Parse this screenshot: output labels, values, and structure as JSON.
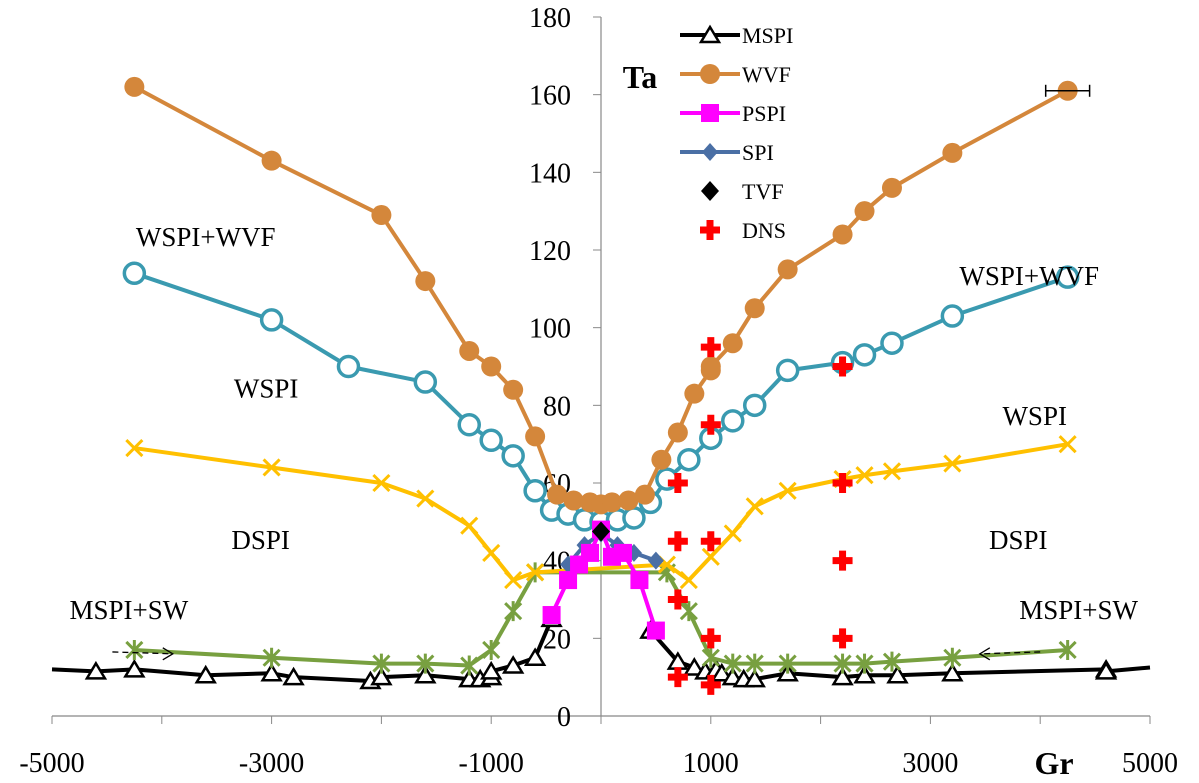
{
  "chart_data": {
    "type": "line",
    "x_axis": {
      "label": "Gr",
      "range": [
        -5000,
        5000
      ],
      "tick_labels": [
        "-5000",
        "-3000",
        "-1000",
        "1000",
        "3000",
        "5000"
      ],
      "tick_values": [
        -5000,
        -3000,
        -1000,
        1000,
        3000,
        5000
      ],
      "minor_tick_step": 1000
    },
    "y_axis": {
      "label": "Ta",
      "range": [
        0,
        180
      ],
      "tick_values": [
        0,
        20,
        40,
        60,
        80,
        100,
        120,
        140,
        160,
        180
      ],
      "tick_labels": [
        "0",
        "20",
        "40",
        "60",
        "80",
        "100",
        "120",
        "140",
        "160",
        "180"
      ]
    },
    "grid": false,
    "legend_position": "top-center",
    "colors": {
      "MSPI": "#000000",
      "WVF": "#d4873b",
      "PSPI": "#ff00ff",
      "SPI": "#4a6fa5",
      "TVF": "#000000",
      "DNS": "#ff0000",
      "WSPI_boundary": "#3a9ab0",
      "DSPI_boundary": "#ffc000",
      "MSPI_SW_boundary": "#78a040"
    },
    "series": [
      {
        "name": "MSPI",
        "marker": "triangle-open",
        "points": [
          [
            -4600,
            11.5
          ],
          [
            -4250,
            12
          ],
          [
            -3600,
            10.5
          ],
          [
            -3000,
            11
          ],
          [
            -2800,
            10
          ],
          [
            -2100,
            9
          ],
          [
            -2000,
            10
          ],
          [
            -1600,
            10.5
          ],
          [
            -1200,
            9.5
          ],
          [
            -1100,
            9.5
          ],
          [
            -1000,
            10
          ],
          [
            -1000,
            11.5
          ],
          [
            -800,
            13
          ],
          [
            -600,
            15
          ],
          [
            -450,
            25
          ]
        ]
      },
      {
        "name": "MSPI_right",
        "marker": "triangle-open",
        "points": [
          [
            450,
            22
          ],
          [
            700,
            14
          ],
          [
            850,
            12.5
          ],
          [
            950,
            11.5
          ],
          [
            1050,
            12
          ],
          [
            1100,
            11
          ],
          [
            1200,
            10
          ],
          [
            1300,
            9.5
          ],
          [
            1400,
            9.5
          ],
          [
            1700,
            11
          ],
          [
            2200,
            10
          ],
          [
            2400,
            10.5
          ],
          [
            2700,
            10.5
          ],
          [
            3200,
            11
          ],
          [
            4600,
            12
          ],
          [
            4600,
            11.5
          ]
        ]
      },
      {
        "name": "WVF",
        "marker": "circle-filled",
        "points": [
          [
            -4250,
            162
          ],
          [
            -3000,
            143
          ],
          [
            -2000,
            129
          ],
          [
            -1600,
            112
          ],
          [
            -1200,
            94
          ],
          [
            -1000,
            90
          ],
          [
            -800,
            84
          ],
          [
            -600,
            72
          ],
          [
            -400,
            57
          ],
          [
            -250,
            55.5
          ],
          [
            -100,
            55
          ],
          [
            0,
            54.5
          ],
          [
            100,
            55
          ],
          [
            250,
            55.5
          ],
          [
            400,
            57
          ],
          [
            550,
            66
          ],
          [
            700,
            73
          ],
          [
            850,
            83
          ],
          [
            1000,
            89
          ],
          [
            1000,
            90
          ],
          [
            1200,
            96
          ],
          [
            1400,
            105
          ],
          [
            1700,
            115
          ],
          [
            2200,
            124
          ],
          [
            2400,
            130
          ],
          [
            2650,
            136
          ],
          [
            3200,
            145
          ],
          [
            4250,
            161
          ]
        ]
      },
      {
        "name": "PSPI",
        "marker": "square-filled",
        "points": [
          [
            -450,
            26
          ],
          [
            -300,
            35
          ],
          [
            -200,
            39
          ],
          [
            -100,
            42
          ],
          [
            0,
            48
          ],
          [
            100,
            41
          ],
          [
            200,
            42
          ],
          [
            350,
            35
          ],
          [
            500,
            22
          ]
        ]
      },
      {
        "name": "SPI",
        "marker": "diamond-filled",
        "points": [
          [
            -300,
            39
          ],
          [
            -150,
            44
          ],
          [
            0,
            47
          ],
          [
            150,
            44
          ],
          [
            300,
            42
          ],
          [
            500,
            40
          ]
        ]
      },
      {
        "name": "TVF",
        "marker": "diamond-black",
        "points": [
          [
            0,
            47.5
          ]
        ]
      },
      {
        "name": "DNS",
        "marker": "cross-filled",
        "points": [
          [
            700,
            60
          ],
          [
            700,
            45
          ],
          [
            700,
            30
          ],
          [
            700,
            10
          ],
          [
            1000,
            95
          ],
          [
            1000,
            75
          ],
          [
            1000,
            45
          ],
          [
            1000,
            20
          ],
          [
            1000,
            8
          ],
          [
            2200,
            90
          ],
          [
            2200,
            60
          ],
          [
            2200,
            40
          ],
          [
            2200,
            20
          ]
        ]
      },
      {
        "name": "WSPI_boundary",
        "marker": "circle-open",
        "points": [
          [
            -4250,
            114
          ],
          [
            -3000,
            102
          ],
          [
            -2300,
            90
          ],
          [
            -1600,
            86
          ],
          [
            -1200,
            75
          ],
          [
            -1000,
            71
          ],
          [
            -800,
            67
          ],
          [
            -600,
            58
          ],
          [
            -450,
            53
          ],
          [
            -300,
            52
          ],
          [
            -150,
            50.5
          ],
          [
            0,
            50
          ],
          [
            150,
            50.5
          ],
          [
            300,
            51
          ],
          [
            450,
            55
          ],
          [
            600,
            61
          ],
          [
            800,
            66
          ],
          [
            1000,
            71.5
          ],
          [
            1200,
            76
          ],
          [
            1400,
            80
          ],
          [
            1700,
            89
          ],
          [
            2200,
            91
          ],
          [
            2400,
            93
          ],
          [
            2650,
            96
          ],
          [
            3200,
            103
          ],
          [
            4250,
            113
          ]
        ]
      },
      {
        "name": "DSPI_boundary",
        "marker": "x",
        "points": [
          [
            -4250,
            69
          ],
          [
            -3000,
            64
          ],
          [
            -2000,
            60
          ],
          [
            -1600,
            56
          ],
          [
            -1200,
            49
          ],
          [
            -1000,
            42
          ],
          [
            -800,
            35
          ],
          [
            -600,
            37
          ],
          [
            600,
            39
          ],
          [
            800,
            35
          ],
          [
            1000,
            41
          ],
          [
            1200,
            47
          ],
          [
            1400,
            54
          ],
          [
            1700,
            58
          ],
          [
            2200,
            61
          ],
          [
            2400,
            62
          ],
          [
            2650,
            63
          ],
          [
            3200,
            65
          ],
          [
            4250,
            70
          ]
        ]
      },
      {
        "name": "MSPI_SW_boundary",
        "marker": "star",
        "points": [
          [
            -4250,
            17
          ],
          [
            -3000,
            15
          ],
          [
            -2000,
            13.5
          ],
          [
            -1600,
            13.5
          ],
          [
            -1200,
            13
          ],
          [
            -1000,
            17
          ],
          [
            -800,
            27
          ],
          [
            -600,
            37
          ],
          [
            600,
            37
          ],
          [
            800,
            27
          ],
          [
            1000,
            15
          ],
          [
            1200,
            13.5
          ],
          [
            1400,
            13.5
          ],
          [
            1700,
            13.5
          ],
          [
            2200,
            13.5
          ],
          [
            2400,
            13.5
          ],
          [
            2650,
            14
          ],
          [
            3200,
            15
          ],
          [
            4250,
            17
          ]
        ]
      }
    ],
    "error_bar": {
      "x": 4250,
      "y": 161,
      "xerr": 200
    },
    "regions": [
      {
        "text": "WSPI+WVF",
        "x": -3600,
        "y": 121
      },
      {
        "text": "WSPI",
        "x": -3050,
        "y": 82
      },
      {
        "text": "DSPI",
        "x": -3100,
        "y": 43
      },
      {
        "text": "MSPI+SW",
        "x": -4300,
        "y": 25
      },
      {
        "text": "WSPI+WVF",
        "x": 3900,
        "y": 111
      },
      {
        "text": "WSPI",
        "x": 3950,
        "y": 75
      },
      {
        "text": "DSPI",
        "x": 3800,
        "y": 43
      },
      {
        "text": "MSPI+SW",
        "x": 4350,
        "y": 25
      }
    ],
    "arrows": [
      {
        "from": [
          -4450,
          16.5
        ],
        "to": [
          -3900,
          16
        ]
      },
      {
        "from": [
          4000,
          16.5
        ],
        "to": [
          3450,
          16
        ]
      }
    ],
    "legend": [
      {
        "label": "MSPI",
        "series": "MSPI"
      },
      {
        "label": "WVF",
        "series": "WVF"
      },
      {
        "label": "PSPI",
        "series": "PSPI"
      },
      {
        "label": "SPI",
        "series": "SPI"
      },
      {
        "label": "TVF",
        "series": "TVF"
      },
      {
        "label": "DNS",
        "series": "DNS"
      }
    ]
  }
}
